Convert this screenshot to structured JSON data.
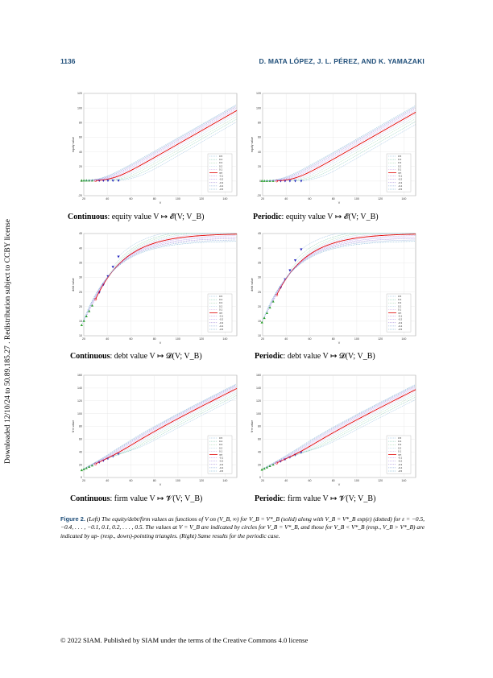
{
  "header": {
    "page_number": "1136",
    "running_head": "D. MATA LÓPEZ, J. L. PÉREZ, AND K. YAMAZAKI"
  },
  "sidebar": {
    "text": "Downloaded 12/10/24 to 50.89.185.27 . Redistribution subject to CCBY license"
  },
  "panels": [
    {
      "caption_bold": "Continuous",
      "caption_rest": ": equity value V ↦ 𝓔(V; V_B)",
      "chart_data": {
        "type": "line",
        "ylabel": "equity value",
        "xlabel": "V",
        "xlim": [
          20,
          150
        ],
        "ylim": [
          -20,
          120
        ],
        "xticks": [
          "20",
          "40",
          "60",
          "80",
          "100",
          "120",
          "140"
        ],
        "yticks": [
          "-20",
          "0",
          "20",
          "40",
          "60",
          "80",
          "100",
          "120"
        ],
        "legend": [
          "0.5",
          "0.4",
          "0.3",
          "0.2",
          "0.1",
          "opt",
          "-0.1",
          "-0.2",
          "-0.3",
          "-0.4",
          "-0.5"
        ],
        "legend_position": "right",
        "kind": "equity",
        "regime": "continuous",
        "vb_opt": 30
      }
    },
    {
      "caption_bold": "Periodic",
      "caption_rest": ": equity value V ↦ 𝓔(V; V_B)",
      "chart_data": {
        "type": "line",
        "ylabel": "equity value",
        "xlabel": "V",
        "xlim": [
          20,
          150
        ],
        "ylim": [
          -20,
          120
        ],
        "xticks": [
          "20",
          "40",
          "60",
          "80",
          "100",
          "120",
          "140"
        ],
        "yticks": [
          "-20",
          "0",
          "20",
          "40",
          "60",
          "80",
          "100",
          "120"
        ],
        "legend": [
          "0.5",
          "0.4",
          "0.3",
          "0.2",
          "0.1",
          "opt",
          "-0.1",
          "-0.2",
          "-0.3",
          "-0.4",
          "-0.5"
        ],
        "legend_position": "right",
        "kind": "equity",
        "regime": "periodic",
        "vb_opt": 32
      }
    },
    {
      "caption_bold": "Continuous",
      "caption_rest": ": debt value V ↦ 𝓓(V; V_B)",
      "chart_data": {
        "type": "line",
        "ylabel": "debt value",
        "xlabel": "V",
        "xlim": [
          20,
          150
        ],
        "ylim": [
          10,
          45
        ],
        "xticks": [
          "20",
          "40",
          "60",
          "80",
          "100",
          "120",
          "140"
        ],
        "yticks": [
          "10",
          "15",
          "20",
          "25",
          "30",
          "35",
          "40",
          "45"
        ],
        "legend": [
          "0.5",
          "0.4",
          "0.3",
          "0.2",
          "0.1",
          "opt",
          "-0.1",
          "-0.2",
          "-0.3",
          "-0.4",
          "-0.5"
        ],
        "legend_position": "right",
        "kind": "debt",
        "regime": "continuous",
        "vb_opt": 30
      }
    },
    {
      "caption_bold": "Periodic",
      "caption_rest": ": debt value V ↦ 𝓓(V; V_B)",
      "chart_data": {
        "type": "line",
        "ylabel": "debt value",
        "xlabel": "V",
        "xlim": [
          20,
          150
        ],
        "ylim": [
          10,
          45
        ],
        "xticks": [
          "20",
          "40",
          "60",
          "80",
          "100",
          "120",
          "140"
        ],
        "yticks": [
          "10",
          "15",
          "20",
          "25",
          "30",
          "35",
          "40",
          "45"
        ],
        "legend": [
          "0.5",
          "0.4",
          "0.3",
          "0.2",
          "0.1",
          "opt",
          "-0.1",
          "-0.2",
          "-0.3",
          "-0.4",
          "-0.5"
        ],
        "legend_position": "right",
        "kind": "debt",
        "regime": "periodic",
        "vb_opt": 32
      }
    },
    {
      "caption_bold": "Continuous",
      "caption_rest": ": firm value V ↦ 𝓥(V; V_B)",
      "chart_data": {
        "type": "line",
        "ylabel": "firm value",
        "xlabel": "V",
        "xlim": [
          20,
          150
        ],
        "ylim": [
          0,
          160
        ],
        "xticks": [
          "20",
          "40",
          "60",
          "80",
          "100",
          "120",
          "140"
        ],
        "yticks": [
          "0",
          "20",
          "40",
          "60",
          "80",
          "100",
          "120",
          "140",
          "160"
        ],
        "legend": [
          "0.5",
          "0.4",
          "0.3",
          "0.2",
          "0.1",
          "opt",
          "-0.1",
          "-0.2",
          "-0.3",
          "-0.4",
          "-0.5"
        ],
        "legend_position": "right",
        "kind": "firm",
        "regime": "continuous",
        "vb_opt": 30
      }
    },
    {
      "caption_bold": "Periodic",
      "caption_rest": ": firm value V ↦ 𝓥(V; V_B)",
      "chart_data": {
        "type": "line",
        "ylabel": "firm value",
        "xlabel": "V",
        "xlim": [
          20,
          150
        ],
        "ylim": [
          0,
          160
        ],
        "xticks": [
          "20",
          "40",
          "60",
          "80",
          "100",
          "120",
          "140"
        ],
        "yticks": [
          "0",
          "20",
          "40",
          "60",
          "80",
          "100",
          "120",
          "140",
          "160"
        ],
        "legend": [
          "0.5",
          "0.4",
          "0.3",
          "0.2",
          "0.1",
          "opt",
          "-0.1",
          "-0.2",
          "-0.3",
          "-0.4",
          "-0.5"
        ],
        "legend_position": "right",
        "kind": "firm",
        "regime": "periodic",
        "vb_opt": 32
      }
    }
  ],
  "figure_caption": {
    "label": "Figure 2.",
    "text": "(Left) The equity/debt/firm values as functions of V on (V_B, ∞) for V_B = V*_B (solid) along with V_B = V*_B exp(ε) (dotted) for ε = −0.5, −0.4, . . . , −0.1, 0.1, 0.2, . . . , 0.5. The values at V = V_B are indicated by circles for V_B = V*_B, and those for V_B < V*_B (resp., V_B > V*_B) are indicated by up- (resp., down)-pointing triangles. (Right) Same results for the periodic case."
  },
  "footer": {
    "text": "© 2022 SIAM. Published by SIAM under the terms of the Creative Commons 4.0 license"
  },
  "colors": {
    "header_blue": "#1f4e79",
    "opt_line": "#e00000",
    "up_triangle": "#2ca02c",
    "down_triangle": "#1f1fbf"
  }
}
